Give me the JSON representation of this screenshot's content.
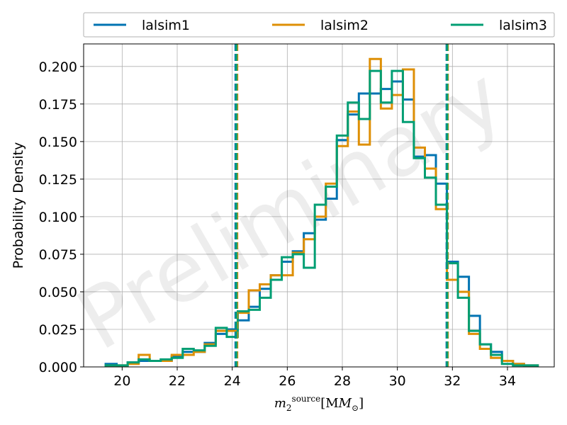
{
  "chart_data": {
    "type": "histogram",
    "watermark": "Preliminary",
    "ylabel": "Probability Density",
    "xlabel_base": "m",
    "xlabel_sub": "2",
    "xlabel_sup": "source",
    "xlabel_unit": "[M",
    "xlabel_unit_sub": "⊙",
    "xlabel_close": "]",
    "xlim": [
      18.6,
      35.7
    ],
    "ylim": [
      0,
      0.215
    ],
    "xticks": [
      20,
      22,
      24,
      26,
      28,
      30,
      32,
      34
    ],
    "yticks": [
      0.0,
      0.025,
      0.05,
      0.075,
      0.1,
      0.125,
      0.15,
      0.175,
      0.2
    ],
    "ytick_labels": [
      "0.000",
      "0.025",
      "0.050",
      "0.075",
      "0.100",
      "0.125",
      "0.150",
      "0.175",
      "0.200"
    ],
    "grid": true,
    "legend_position": "top, above plot, 3 columns",
    "series": [
      {
        "name": "lalsim1",
        "color": "#0173b2",
        "edges": [
          19.4,
          19.8,
          20.2,
          20.6,
          21.0,
          21.4,
          21.8,
          22.2,
          22.6,
          23.0,
          23.4,
          23.8,
          24.2,
          24.6,
          25.0,
          25.4,
          25.8,
          26.2,
          26.6,
          27.0,
          27.4,
          27.8,
          28.2,
          28.6,
          29.0,
          29.4,
          29.8,
          30.2,
          30.6,
          31.0,
          31.4,
          31.8,
          32.2,
          32.6,
          33.0,
          33.4,
          33.8,
          34.2,
          34.6,
          35.1
        ],
        "values": [
          0.002,
          0.001,
          0.003,
          0.004,
          0.004,
          0.004,
          0.007,
          0.01,
          0.01,
          0.016,
          0.022,
          0.025,
          0.031,
          0.04,
          0.052,
          0.061,
          0.07,
          0.077,
          0.089,
          0.098,
          0.112,
          0.151,
          0.168,
          0.182,
          0.182,
          0.185,
          0.19,
          0.178,
          0.14,
          0.141,
          0.122,
          0.07,
          0.06,
          0.034,
          0.015,
          0.01,
          0.004,
          0.002,
          0.001
        ]
      },
      {
        "name": "lalsim2",
        "color": "#de8f05",
        "edges": [
          19.4,
          19.8,
          20.2,
          20.6,
          21.0,
          21.4,
          21.8,
          22.2,
          22.6,
          23.0,
          23.4,
          23.8,
          24.2,
          24.6,
          25.0,
          25.4,
          25.8,
          26.2,
          26.6,
          27.0,
          27.4,
          27.8,
          28.2,
          28.6,
          29.0,
          29.4,
          29.8,
          30.2,
          30.6,
          31.0,
          31.4,
          31.8,
          32.2,
          32.6,
          33.0,
          33.4,
          33.8,
          34.2,
          34.6,
          35.1
        ],
        "values": [
          0.001,
          0.001,
          0.002,
          0.008,
          0.004,
          0.004,
          0.008,
          0.008,
          0.01,
          0.015,
          0.024,
          0.024,
          0.036,
          0.051,
          0.055,
          0.061,
          0.061,
          0.076,
          0.085,
          0.1,
          0.122,
          0.147,
          0.17,
          0.148,
          0.205,
          0.172,
          0.181,
          0.198,
          0.146,
          0.132,
          0.105,
          0.058,
          0.05,
          0.022,
          0.012,
          0.006,
          0.004,
          0.002,
          0.001
        ]
      },
      {
        "name": "lalsim3",
        "color": "#029e73",
        "edges": [
          19.4,
          19.8,
          20.2,
          20.6,
          21.0,
          21.4,
          21.8,
          22.2,
          22.6,
          23.0,
          23.4,
          23.8,
          24.2,
          24.6,
          25.0,
          25.4,
          25.8,
          26.2,
          26.6,
          27.0,
          27.4,
          27.8,
          28.2,
          28.6,
          29.0,
          29.4,
          29.8,
          30.2,
          30.6,
          31.0,
          31.4,
          31.8,
          32.2,
          32.6,
          33.0,
          33.4,
          33.8,
          34.2,
          34.6,
          35.1
        ],
        "values": [
          0.001,
          0.001,
          0.003,
          0.005,
          0.004,
          0.005,
          0.006,
          0.012,
          0.011,
          0.014,
          0.026,
          0.02,
          0.037,
          0.038,
          0.046,
          0.058,
          0.073,
          0.075,
          0.066,
          0.108,
          0.12,
          0.154,
          0.176,
          0.165,
          0.197,
          0.176,
          0.197,
          0.163,
          0.139,
          0.126,
          0.108,
          0.069,
          0.046,
          0.024,
          0.015,
          0.008,
          0.002,
          0.001,
          0.001
        ]
      }
    ],
    "vlines": [
      {
        "x": 24.12,
        "color": "#0173b2"
      },
      {
        "x": 24.18,
        "color": "#de8f05"
      },
      {
        "x": 24.15,
        "color": "#029e73"
      },
      {
        "x": 31.79,
        "color": "#0173b2"
      },
      {
        "x": 31.83,
        "color": "#de8f05"
      },
      {
        "x": 31.81,
        "color": "#029e73"
      }
    ]
  }
}
